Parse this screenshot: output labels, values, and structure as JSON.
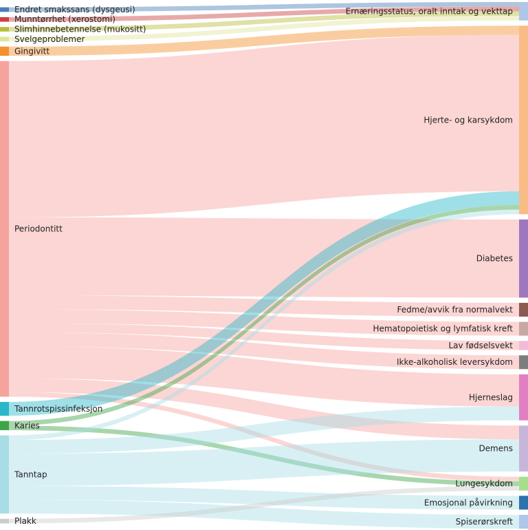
{
  "chart_data": {
    "type": "sankey",
    "title": "",
    "sources": [
      {
        "name": "Endret smakssans (dysgeusi)",
        "color": "#4a7fb5"
      },
      {
        "name": "Munntørrhet (xerostomi)",
        "color": "#c9403f"
      },
      {
        "name": "Slimhinnebetennelse (mukositt)",
        "color": "#b7bd3a"
      },
      {
        "name": "Svelgeproblemer",
        "color": "#dfe49a"
      },
      {
        "name": "Gingivitt",
        "color": "#f4902f"
      },
      {
        "name": "Periodontitt",
        "color": "#f6a39f"
      },
      {
        "name": "Tannrotspissinfeksjon",
        "color": "#2ab7ca"
      },
      {
        "name": "Karies",
        "color": "#3ea547"
      },
      {
        "name": "Tanntap",
        "color": "#a9dde6"
      },
      {
        "name": "Plakk",
        "color": "#cccccc"
      }
    ],
    "targets": [
      {
        "name": "Ernæringsstatus, oralt inntak og vekttap",
        "color": "#aec7e8"
      },
      {
        "name": "Hjerte- og karsykdom",
        "color": "#f9bc86"
      },
      {
        "name": "Diabetes",
        "color": "#9e78bf"
      },
      {
        "name": "Fedme/avvik fra normalvekt",
        "color": "#8c5a50"
      },
      {
        "name": "Hematopoietisk og lymfatisk kreft",
        "color": "#c7a9a3"
      },
      {
        "name": "Lav fødselsvekt",
        "color": "#f2bad9"
      },
      {
        "name": "Ikke-alkoholisk leversykdom",
        "color": "#7d7d7d"
      },
      {
        "name": "Hjerneslag",
        "color": "#e07fc1"
      },
      {
        "name": "Demens",
        "color": "#c8b6da"
      },
      {
        "name": "Lungesykdom",
        "color": "#a6df8c"
      },
      {
        "name": "Emosjonal påvirkning",
        "color": "#2b73ad"
      },
      {
        "name": "Spiserørskreft",
        "color": "#aec7e8"
      }
    ],
    "links": [
      {
        "source": "Endret smakssans (dysgeusi)",
        "target": "Ernæringsstatus, oralt inntak og vekttap",
        "value": 1
      },
      {
        "source": "Munntørrhet (xerostomi)",
        "target": "Ernæringsstatus, oralt inntak og vekttap",
        "value": 1
      },
      {
        "source": "Slimhinnebetennelse (mukositt)",
        "target": "Ernæringsstatus, oralt inntak og vekttap",
        "value": 1
      },
      {
        "source": "Svelgeproblemer",
        "target": "Ernæringsstatus, oralt inntak og vekttap",
        "value": 1
      },
      {
        "source": "Gingivitt",
        "target": "Hjerte- og karsykdom",
        "value": 2
      },
      {
        "source": "Periodontitt",
        "target": "Hjerte- og karsykdom",
        "value": 34
      },
      {
        "source": "Periodontitt",
        "target": "Diabetes",
        "value": 17
      },
      {
        "source": "Periodontitt",
        "target": "Fedme/avvik fra normalvekt",
        "value": 3
      },
      {
        "source": "Periodontitt",
        "target": "Hematopoietisk og lymfatisk kreft",
        "value": 3
      },
      {
        "source": "Periodontitt",
        "target": "Lav fødselsvekt",
        "value": 2
      },
      {
        "source": "Periodontitt",
        "target": "Ikke-alkoholisk leversykdom",
        "value": 3
      },
      {
        "source": "Periodontitt",
        "target": "Hjerneslag",
        "value": 7
      },
      {
        "source": "Periodontitt",
        "target": "Demens",
        "value": 3
      },
      {
        "source": "Periodontitt",
        "target": "Lungesykdom",
        "value": 1
      },
      {
        "source": "Tannrotspissinfeksjon",
        "target": "Hjerte- og karsykdom",
        "value": 3
      },
      {
        "source": "Karies",
        "target": "Hjerte- og karsykdom",
        "value": 1
      },
      {
        "source": "Karies",
        "target": "Lungesykdom",
        "value": 1
      },
      {
        "source": "Tanntap",
        "target": "Hjerte- og karsykdom",
        "value": 1
      },
      {
        "source": "Tanntap",
        "target": "Hjerneslag",
        "value": 3
      },
      {
        "source": "Tanntap",
        "target": "Demens",
        "value": 7
      },
      {
        "source": "Tanntap",
        "target": "Emosjonal påvirkning",
        "value": 3
      },
      {
        "source": "Tanntap",
        "target": "Spiserørskreft",
        "value": 3
      },
      {
        "source": "Plakk",
        "target": "Lungesykdom",
        "value": 1
      }
    ]
  }
}
